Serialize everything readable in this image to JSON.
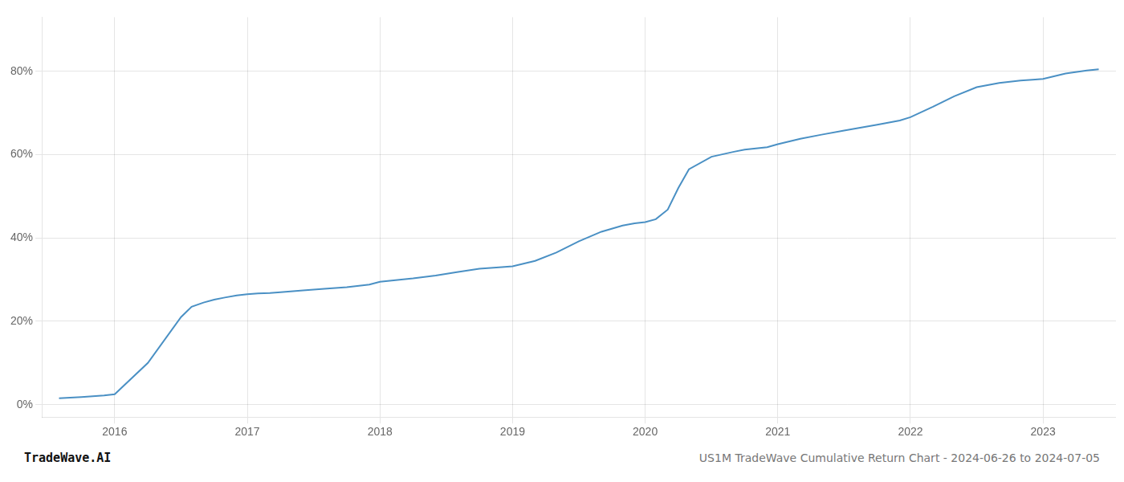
{
  "chart_data": {
    "type": "line",
    "x": [
      2015.58,
      2015.75,
      2015.92,
      2016.0,
      2016.25,
      2016.5,
      2016.58,
      2016.67,
      2016.75,
      2016.83,
      2016.92,
      2017.0,
      2017.08,
      2017.17,
      2017.25,
      2017.42,
      2017.58,
      2017.75,
      2017.92,
      2018.0,
      2018.25,
      2018.42,
      2018.58,
      2018.75,
      2018.92,
      2019.0,
      2019.17,
      2019.33,
      2019.5,
      2019.67,
      2019.83,
      2019.92,
      2020.0,
      2020.08,
      2020.17,
      2020.25,
      2020.33,
      2020.5,
      2020.67,
      2020.75,
      2020.92,
      2021.0,
      2021.17,
      2021.33,
      2021.5,
      2021.75,
      2021.92,
      2022.0,
      2022.17,
      2022.33,
      2022.5,
      2022.67,
      2022.83,
      2022.92,
      2023.0,
      2023.17,
      2023.33,
      2023.42
    ],
    "values": [
      0.015,
      0.018,
      0.022,
      0.025,
      0.1,
      0.21,
      0.235,
      0.245,
      0.252,
      0.257,
      0.262,
      0.265,
      0.267,
      0.268,
      0.27,
      0.274,
      0.278,
      0.282,
      0.288,
      0.295,
      0.303,
      0.31,
      0.318,
      0.326,
      0.33,
      0.332,
      0.345,
      0.365,
      0.392,
      0.415,
      0.43,
      0.435,
      0.438,
      0.445,
      0.468,
      0.52,
      0.565,
      0.595,
      0.607,
      0.612,
      0.618,
      0.625,
      0.638,
      0.648,
      0.658,
      0.672,
      0.682,
      0.69,
      0.715,
      0.74,
      0.762,
      0.772,
      0.778,
      0.78,
      0.782,
      0.795,
      0.802,
      0.805
    ],
    "color": "#4a90c4",
    "xlim": [
      2015.45,
      2023.55
    ],
    "xticks": [
      2016,
      2017,
      2018,
      2019,
      2020,
      2021,
      2022,
      2023
    ],
    "ylim": [
      -0.03,
      0.93
    ],
    "yticks": [
      {
        "value": 0.0,
        "label": "0%"
      },
      {
        "value": 0.2,
        "label": "20%"
      },
      {
        "value": 0.4,
        "label": "40%"
      },
      {
        "value": 0.6,
        "label": "60%"
      },
      {
        "value": 0.8,
        "label": "80%"
      }
    ],
    "grid": true,
    "annotations": [
      "TradeWave.AI",
      "US1M TradeWave Cumulative Return Chart - 2024-06-26 to 2024-07-05"
    ]
  }
}
